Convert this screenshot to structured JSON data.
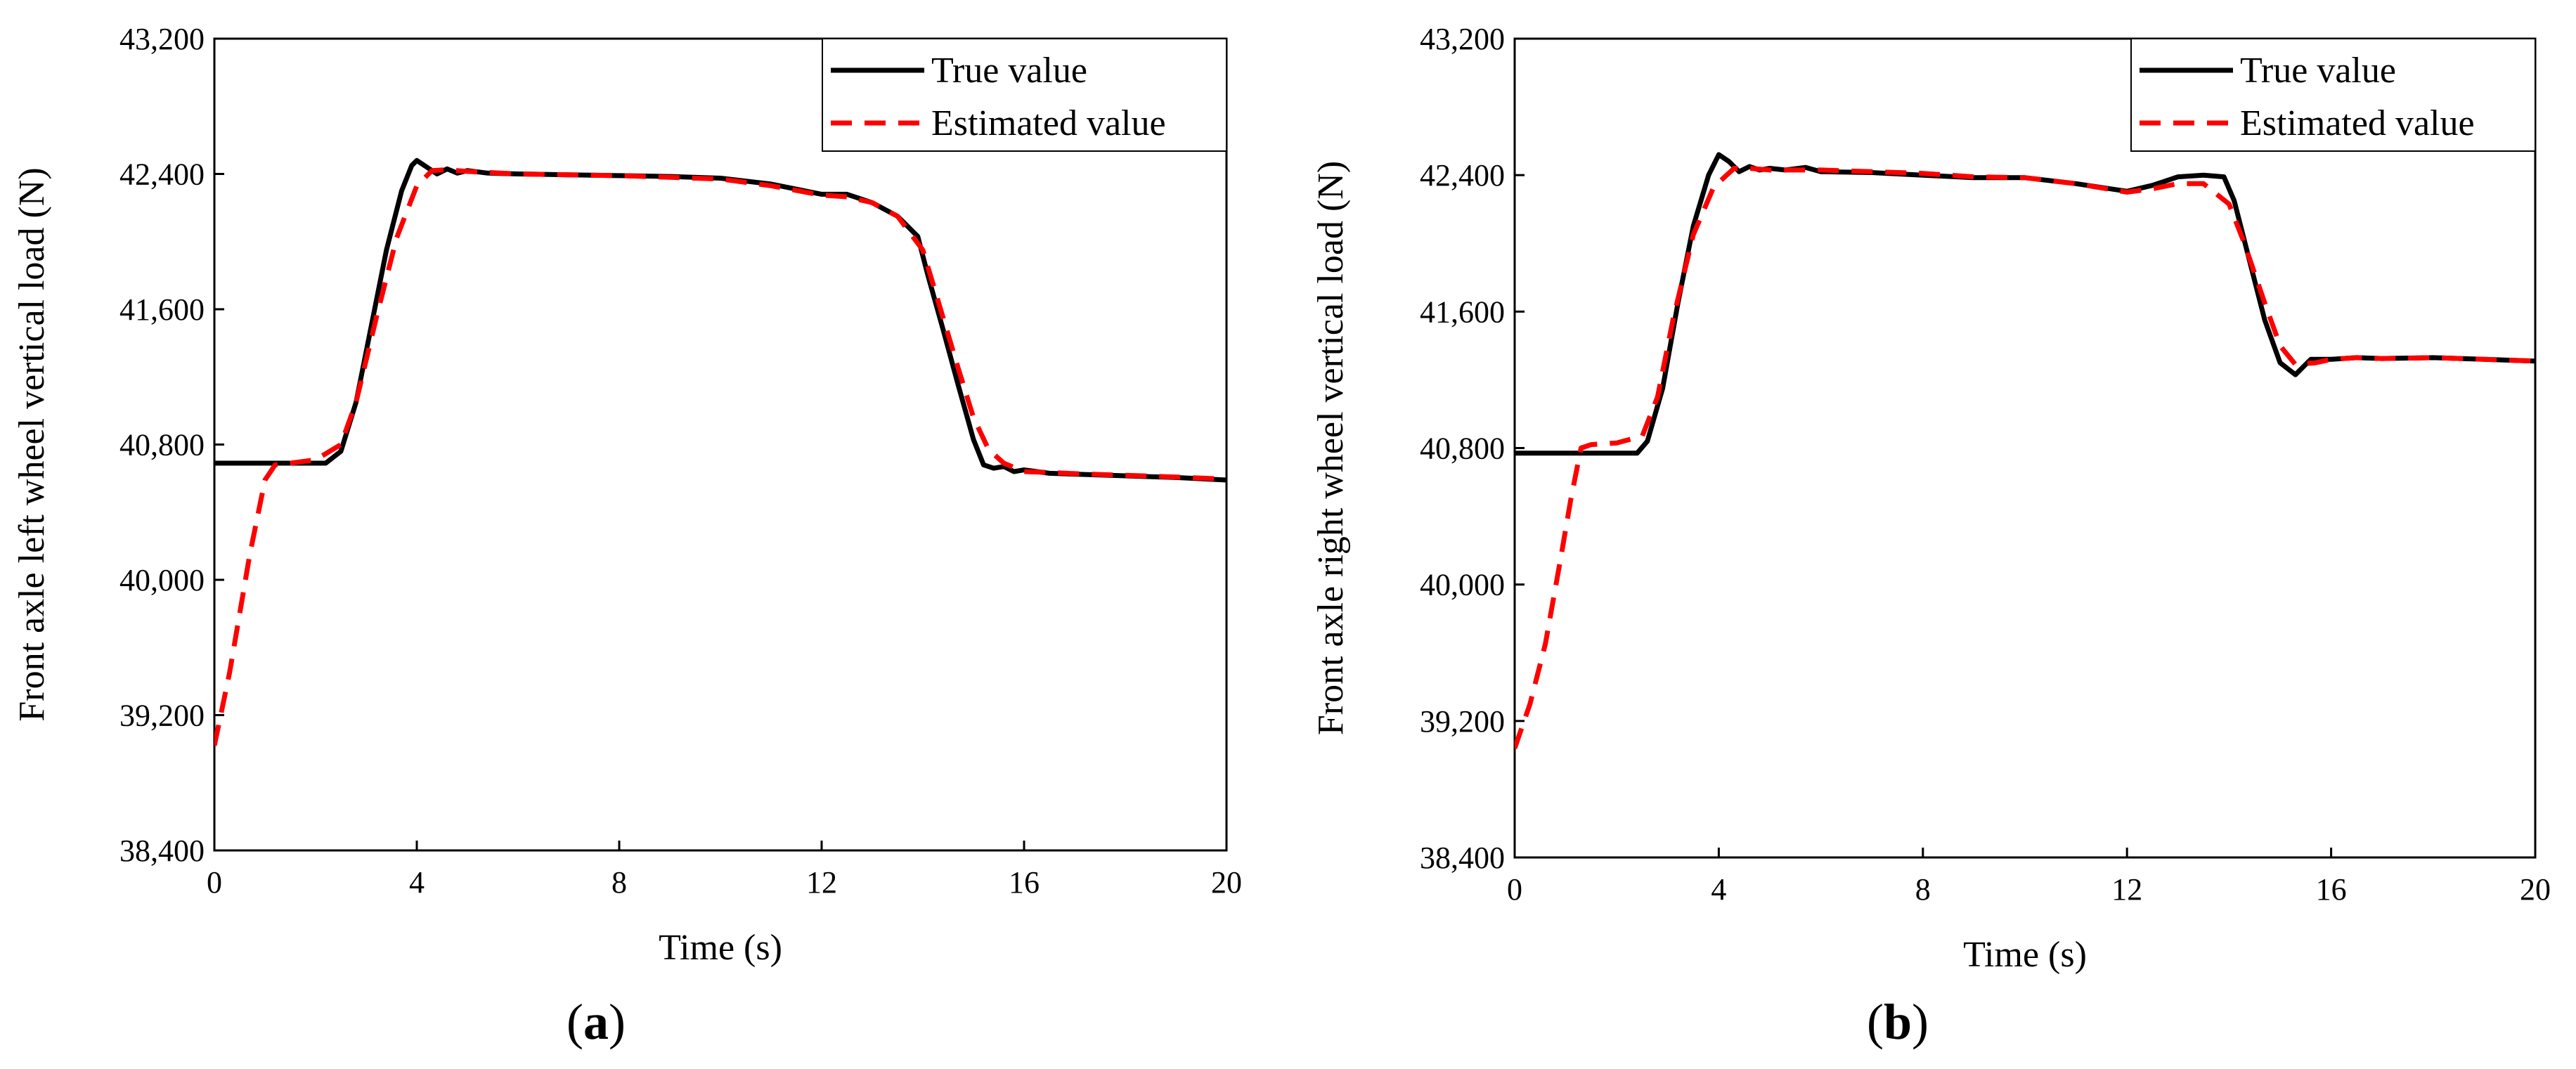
{
  "figure": {
    "panel_labels": [
      {
        "open": "(",
        "letter": "a",
        "close": ")"
      },
      {
        "open": "(",
        "letter": "b",
        "close": ")"
      }
    ]
  },
  "chart_data": [
    {
      "type": "line",
      "panel": "a",
      "title": "",
      "xlabel": "Time (s)",
      "ylabel": "Front axle left wheel vertical load (N)",
      "xlim": [
        0,
        20
      ],
      "ylim": [
        38400,
        43200
      ],
      "xticks": [
        0,
        4,
        8,
        12,
        16,
        20
      ],
      "xtick_labels": [
        "0",
        "4",
        "8",
        "12",
        "16",
        "20"
      ],
      "yticks": [
        38400,
        39200,
        40000,
        40800,
        41600,
        42400,
        43200
      ],
      "ytick_labels": [
        "38,400",
        "39,200",
        "40,000",
        "40,800",
        "41,600",
        "42,400",
        "43,200"
      ],
      "legend_position": "top-right",
      "series": [
        {
          "name": "True value",
          "color": "#000000",
          "style": "solid",
          "x": [
            0,
            2.2,
            2.5,
            2.8,
            3.1,
            3.4,
            3.7,
            3.9,
            4.0,
            4.2,
            4.4,
            4.6,
            4.8,
            5.0,
            5.4,
            6.0,
            7.0,
            8.0,
            9.0,
            10.0,
            11.0,
            12.0,
            12.5,
            13.0,
            13.5,
            13.9,
            14.1,
            14.4,
            14.7,
            15.0,
            15.2,
            15.4,
            15.6,
            15.8,
            16.0,
            16.5,
            17.0,
            18.0,
            19.0,
            20.0
          ],
          "y": [
            40690,
            40690,
            40760,
            41050,
            41500,
            41950,
            42300,
            42450,
            42480,
            42440,
            42400,
            42430,
            42405,
            42420,
            42405,
            42400,
            42395,
            42390,
            42385,
            42375,
            42340,
            42280,
            42280,
            42230,
            42150,
            42030,
            41800,
            41480,
            41150,
            40830,
            40680,
            40660,
            40670,
            40640,
            40650,
            40630,
            40625,
            40615,
            40605,
            40590
          ]
        },
        {
          "name": "Estimated value",
          "color": "#ff0000",
          "style": "dashed",
          "x": [
            0,
            0.3,
            0.7,
            1.0,
            1.2,
            1.5,
            2.0,
            2.5,
            2.8,
            3.2,
            3.6,
            4.0,
            4.3,
            4.6,
            5.0,
            6.0,
            7.0,
            8.0,
            9.0,
            10.0,
            11.0,
            12.0,
            12.5,
            13.0,
            13.5,
            14.0,
            14.3,
            14.7,
            15.0,
            15.3,
            15.6,
            16.0,
            16.5,
            17.0,
            18.0,
            19.0,
            20.0
          ],
          "y": [
            39020,
            39450,
            40150,
            40590,
            40680,
            40690,
            40710,
            40800,
            41050,
            41550,
            42020,
            42330,
            42420,
            42425,
            42415,
            42400,
            42395,
            42390,
            42380,
            42370,
            42330,
            42275,
            42265,
            42230,
            42150,
            41950,
            41650,
            41250,
            40960,
            40770,
            40690,
            40640,
            40635,
            40628,
            40618,
            40608,
            40595
          ]
        }
      ]
    },
    {
      "type": "line",
      "panel": "b",
      "title": "",
      "xlabel": "Time (s)",
      "ylabel": "Front axle right wheel vertical load (N)",
      "xlim": [
        0,
        20
      ],
      "ylim": [
        38400,
        43200
      ],
      "xticks": [
        0,
        4,
        8,
        12,
        16,
        20
      ],
      "xtick_labels": [
        "0",
        "4",
        "8",
        "12",
        "16",
        "20"
      ],
      "yticks": [
        38400,
        39200,
        40000,
        40800,
        41600,
        42400,
        43200
      ],
      "ytick_labels": [
        "38,400",
        "39,200",
        "40,000",
        "40,800",
        "41,600",
        "42,400",
        "43,200"
      ],
      "legend_position": "top-right",
      "series": [
        {
          "name": "True value",
          "color": "#000000",
          "style": "solid",
          "x": [
            0,
            2.4,
            2.6,
            2.9,
            3.2,
            3.5,
            3.8,
            4.0,
            4.2,
            4.4,
            4.6,
            4.8,
            5.0,
            5.3,
            5.7,
            6.0,
            7.0,
            8.0,
            9.0,
            10.0,
            11.0,
            12.0,
            12.5,
            13.0,
            13.5,
            13.9,
            14.1,
            14.4,
            14.7,
            15.0,
            15.3,
            15.6,
            16.0,
            16.5,
            17.0,
            18.0,
            19.0,
            20.0
          ],
          "y": [
            40770,
            40770,
            40840,
            41150,
            41650,
            42100,
            42400,
            42520,
            42480,
            42420,
            42450,
            42430,
            42440,
            42430,
            42445,
            42420,
            42415,
            42400,
            42385,
            42385,
            42350,
            42305,
            42340,
            42390,
            42400,
            42390,
            42250,
            41900,
            41550,
            41300,
            41230,
            41320,
            41320,
            41330,
            41325,
            41330,
            41320,
            41310
          ]
        },
        {
          "name": "Estimated value",
          "color": "#ff0000",
          "style": "dashed",
          "x": [
            0,
            0.3,
            0.6,
            0.9,
            1.1,
            1.3,
            1.5,
            2.0,
            2.5,
            2.8,
            3.1,
            3.5,
            3.9,
            4.3,
            4.6,
            5.0,
            6.0,
            7.0,
            8.0,
            9.0,
            10.0,
            11.0,
            12.0,
            12.5,
            13.0,
            13.5,
            14.0,
            14.3,
            14.7,
            15.0,
            15.3,
            15.7,
            16.0,
            16.5,
            17.0,
            18.0,
            19.0,
            20.0
          ],
          "y": [
            39040,
            39300,
            39650,
            40150,
            40500,
            40800,
            40820,
            40830,
            40870,
            41100,
            41550,
            42050,
            42330,
            42440,
            42440,
            42430,
            42430,
            42420,
            42410,
            42390,
            42385,
            42350,
            42300,
            42320,
            42350,
            42350,
            42230,
            42000,
            41650,
            41400,
            41290,
            41300,
            41320,
            41330,
            41325,
            41330,
            41320,
            41310
          ]
        }
      ]
    }
  ]
}
